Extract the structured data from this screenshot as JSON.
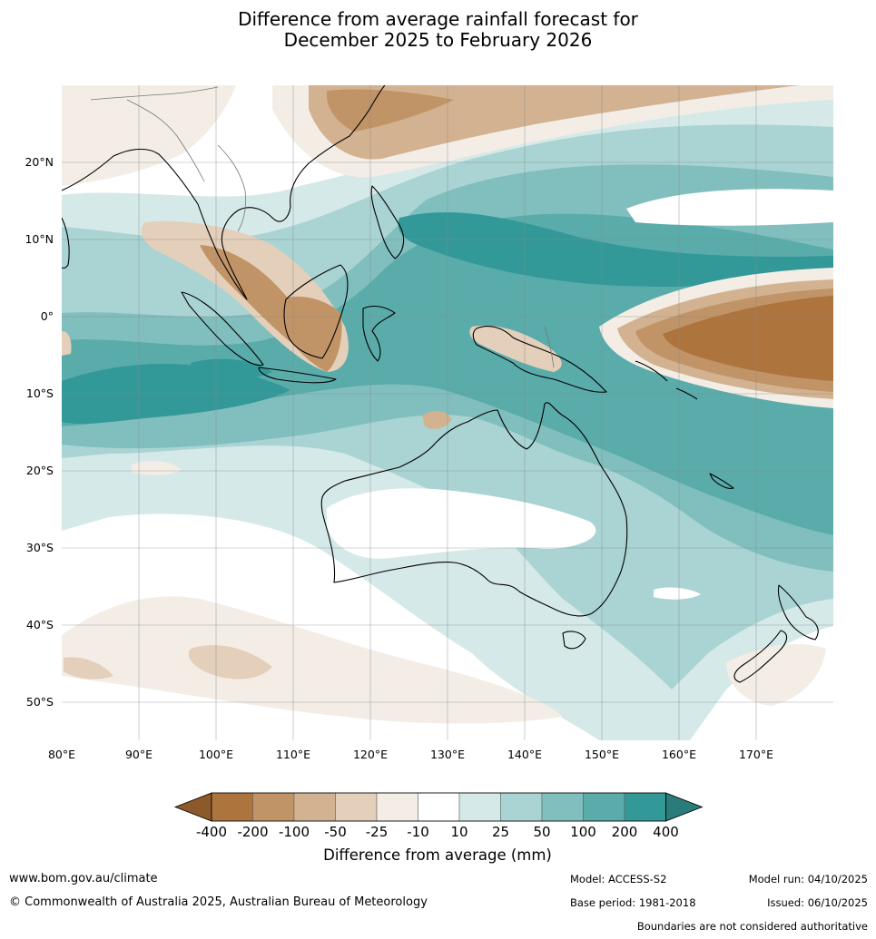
{
  "title": {
    "line1": "Difference from average rainfall forecast for",
    "line2": "December 2025 to February 2026"
  },
  "map": {
    "lat_labels": [
      "20°N",
      "10°N",
      "0°",
      "10°S",
      "20°S",
      "30°S",
      "40°S",
      "50°S"
    ],
    "lon_labels": [
      "80°E",
      "90°E",
      "100°E",
      "110°E",
      "120°E",
      "130°E",
      "140°E",
      "150°E",
      "160°E",
      "170°E"
    ],
    "lat_range": [
      30,
      -55
    ],
    "lon_range": [
      80,
      180
    ]
  },
  "legend": {
    "title": "Difference from average (mm)",
    "labels": [
      "-400",
      "-200",
      "-100",
      "-50",
      "-25",
      "-10",
      "10",
      "25",
      "50",
      "100",
      "200",
      "400"
    ],
    "colors": [
      "#8c5a2a",
      "#ad743e",
      "#c19467",
      "#d2b290",
      "#e4cfba",
      "#f3ede6",
      "#ffffff",
      "#d4e9e8",
      "#a9d4d3",
      "#80bfbe",
      "#5aacab",
      "#339998",
      "#2a7c7b"
    ]
  },
  "footer": {
    "website": "www.bom.gov.au/climate",
    "copyright": "© Commonwealth of Australia 2025, Australian Bureau of Meteorology",
    "model": "Model: ACCESS-S2",
    "base_period": "Base period: 1981-2018",
    "model_run": "Model run: 04/10/2025",
    "issued": "Issued: 06/10/2025",
    "disclaimer": "Boundaries are not considered authoritative"
  }
}
